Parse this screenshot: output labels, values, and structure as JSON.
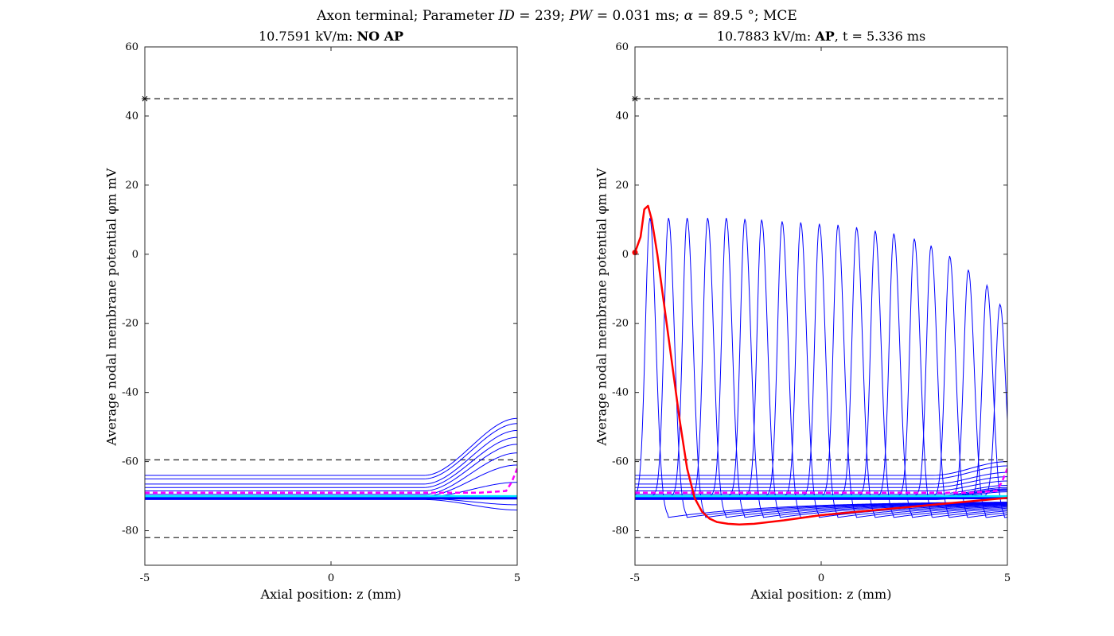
{
  "figure": {
    "suptitle_parts": [
      "Axon terminal; Parameter ",
      "ID",
      " = 239; ",
      "PW",
      " = 0.031 ms; ",
      "α",
      " = 89.5 °; MCE"
    ]
  },
  "chart_data": [
    {
      "type": "line",
      "title_prefix": "10.7591 kV/m: ",
      "title_bold": "NO AP",
      "title_suffix": "",
      "xlabel": "Axial position: z (mm)",
      "ylabel": "Average nodal membrane potential φm mV",
      "xlim": [
        -5,
        5
      ],
      "ylim": [
        -90,
        60
      ],
      "xticks": [
        -5,
        0,
        5
      ],
      "yticks": [
        -80,
        -60,
        -40,
        -20,
        0,
        20,
        40,
        60
      ],
      "grid": false,
      "reference_lines": {
        "dashed_black_y": [
          45,
          -59.5,
          -82
        ],
        "marker_point": [
          -5,
          45
        ]
      },
      "series": [
        {
          "color": "#0000ff",
          "kind": "blue_family",
          "start_values": [
            -64,
            -65,
            -66.5,
            -67.5,
            -68.5,
            -69.5,
            -70,
            -70.3,
            -70.5,
            -70.7,
            -71
          ],
          "end_values": [
            -47.5,
            -49,
            -51,
            -53,
            -55,
            -57.5,
            -61,
            -66,
            -70.5,
            -72.5,
            -74
          ]
        },
        {
          "color": "#00e5ff",
          "kind": "cyan",
          "x": [
            -5,
            5
          ],
          "y": [
            -70,
            -70
          ]
        },
        {
          "color": "#ff00ff",
          "kind": "magenta_dashed",
          "x": [
            -5,
            4.0,
            4.7,
            4.85,
            5
          ],
          "y": [
            -69,
            -69,
            -68.5,
            -66,
            -62
          ]
        }
      ]
    },
    {
      "type": "line",
      "title_prefix": "10.7883 kV/m: ",
      "title_bold": "AP",
      "title_suffix": ", t = 5.336 ms",
      "xlabel": "Axial position: z (mm)",
      "ylabel": "Average nodal membrane potential φm mV",
      "xlim": [
        -5,
        5
      ],
      "ylim": [
        -90,
        60
      ],
      "xticks": [
        -5,
        0,
        5
      ],
      "yticks": [
        -80,
        -60,
        -40,
        -20,
        0,
        20,
        40,
        60
      ],
      "grid": false,
      "reference_lines": {
        "dashed_black_y": [
          45,
          -59.5,
          -82
        ],
        "marker_point": [
          -5,
          45
        ]
      },
      "series": [
        {
          "color": "#0000ff",
          "kind": "ap_waves",
          "peak_x": [
            -4.6,
            -4.1,
            -3.6,
            -3.05,
            -2.55,
            -2.05,
            -1.6,
            -1.05,
            -0.55,
            -0.05,
            0.45,
            0.95,
            1.45,
            1.95,
            2.5,
            2.95,
            3.45,
            3.95,
            4.45,
            4.8
          ],
          "peak_y": [
            10.5,
            10.5,
            10.5,
            10.5,
            10.5,
            10.2,
            10,
            9.5,
            9.2,
            8.8,
            8.5,
            7.8,
            6.8,
            6,
            4.5,
            2.5,
            -0.5,
            -4.5,
            -9,
            -14.5
          ]
        },
        {
          "color": "#0000ff",
          "kind": "flat_family",
          "start_values": [
            -64,
            -65,
            -66.5,
            -67.5,
            -68.5,
            -69.5,
            -70,
            -70.3,
            -70.5,
            -70.7,
            -71
          ]
        },
        {
          "color": "#00e5ff",
          "kind": "cyan",
          "x": [
            -5,
            4.0,
            5
          ],
          "y": [
            -70,
            -70,
            -70
          ]
        },
        {
          "color": "#ff00ff",
          "kind": "magenta_dashed",
          "x": [
            -5,
            4.0,
            4.7,
            4.85,
            5
          ],
          "y": [
            -69,
            -69,
            -68.5,
            -66,
            -62
          ]
        },
        {
          "color": "#ff0000",
          "kind": "red_trace",
          "x": [
            -5,
            -4.85,
            -4.75,
            -4.65,
            -4.55,
            -4.4,
            -4.2,
            -4.0,
            -3.8,
            -3.6,
            -3.4,
            -3.2,
            -3.0,
            -2.8,
            -2.5,
            -2.2,
            -1.8,
            -1.0,
            0,
            1.0,
            2.0,
            3.0,
            4.0,
            5.0
          ],
          "y": [
            0.5,
            5,
            13,
            14,
            10,
            0,
            -16,
            -32,
            -48,
            -62,
            -70.5,
            -74.5,
            -76.5,
            -77.5,
            -78,
            -78.2,
            -78,
            -77,
            -75.5,
            -74.5,
            -73.5,
            -72.5,
            -71.5,
            -70.5
          ]
        }
      ]
    }
  ]
}
